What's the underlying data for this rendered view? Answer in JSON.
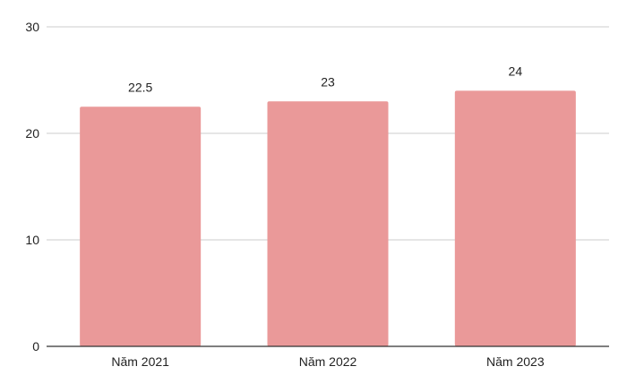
{
  "chart_data": {
    "type": "bar",
    "categories": [
      "Năm 2021",
      "Năm 2022",
      "Năm 2023"
    ],
    "values": [
      22.5,
      23,
      24
    ],
    "data_labels": [
      "22.5",
      "23",
      "24"
    ],
    "y_ticks": [
      "0",
      "10",
      "20",
      "30"
    ],
    "ylim": [
      0,
      30
    ],
    "grid": true,
    "legend": "none",
    "bar_color": "#ea9999",
    "grid_color": "#cccccc",
    "axis_color": "#333333",
    "title": "",
    "xlabel": "",
    "ylabel": ""
  }
}
